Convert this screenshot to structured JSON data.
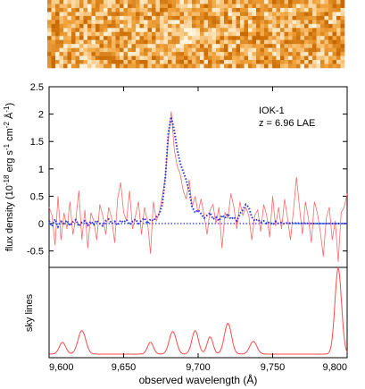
{
  "chart_data": [
    {
      "panel": "spectrum-2d",
      "type": "heatmap",
      "colors": {
        "low": "#c86800",
        "mid": "#f2a640",
        "high": "#fff4dc"
      }
    },
    {
      "panel": "spectrum",
      "type": "line",
      "annotation": {
        "object": "IOK-1",
        "redshift": "z = 6.96 LAE"
      },
      "ylabel": "flux density (10^-18 erg s^-1 cm^-2 Å^-1)",
      "xlim": [
        9600,
        9800
      ],
      "ylim": [
        -0.8,
        2.5
      ],
      "yticks": [
        -0.5,
        0,
        0.5,
        1,
        1.5,
        2,
        2.5
      ],
      "ytick_labels": [
        "-0.5",
        "0",
        "0.5",
        "1",
        "1.5",
        "2",
        "2.5"
      ],
      "series": [
        {
          "style": "solid",
          "color": "#ff6a6a",
          "points": [
            [
              9600,
              0.3
            ],
            [
              9602,
              0.15
            ],
            [
              9604,
              -0.4
            ],
            [
              9606,
              0.5
            ],
            [
              9608,
              -0.3
            ],
            [
              9610,
              0.2
            ],
            [
              9612,
              -0.1
            ],
            [
              9614,
              0.4
            ],
            [
              9616,
              -0.2
            ],
            [
              9618,
              0.1
            ],
            [
              9620,
              0.6
            ],
            [
              9622,
              -0.3
            ],
            [
              9624,
              0.25
            ],
            [
              9626,
              -0.45
            ],
            [
              9628,
              0.2
            ],
            [
              9630,
              0.05
            ],
            [
              9632,
              -0.3
            ],
            [
              9634,
              0.35
            ],
            [
              9636,
              0.15
            ],
            [
              9638,
              -0.2
            ],
            [
              9640,
              0.3
            ],
            [
              9642,
              0.1
            ],
            [
              9644,
              -0.35
            ],
            [
              9646,
              0.45
            ],
            [
              9648,
              0.75
            ],
            [
              9650,
              0.2
            ],
            [
              9652,
              0.05
            ],
            [
              9654,
              0.6
            ],
            [
              9656,
              -0.1
            ],
            [
              9658,
              0.15
            ],
            [
              9660,
              0.4
            ],
            [
              9662,
              -0.2
            ],
            [
              9664,
              0.3
            ],
            [
              9666,
              0.05
            ],
            [
              9668,
              -0.55
            ],
            [
              9670,
              0.4
            ],
            [
              9672,
              0.05
            ],
            [
              9674,
              0.2
            ],
            [
              9676,
              0.5
            ],
            [
              9678,
              0.85
            ],
            [
              9680,
              1.55
            ],
            [
              9682,
              2.05
            ],
            [
              9684,
              1.35
            ],
            [
              9686,
              1.05
            ],
            [
              9688,
              0.9
            ],
            [
              9690,
              0.6
            ],
            [
              9692,
              0.45
            ],
            [
              9694,
              0.8
            ],
            [
              9696,
              0.3
            ],
            [
              9698,
              0.5
            ],
            [
              9700,
              0.2
            ],
            [
              9702,
              0.45
            ],
            [
              9704,
              0.15
            ],
            [
              9706,
              -0.2
            ],
            [
              9708,
              0.25
            ],
            [
              9710,
              0.35
            ],
            [
              9712,
              0.0
            ],
            [
              9714,
              0.3
            ],
            [
              9716,
              -0.45
            ],
            [
              9718,
              0.2
            ],
            [
              9720,
              0.1
            ],
            [
              9722,
              0.55
            ],
            [
              9724,
              0.3
            ],
            [
              9726,
              -0.1
            ],
            [
              9728,
              0.4
            ],
            [
              9730,
              0.15
            ],
            [
              9732,
              0.3
            ],
            [
              9734,
              0.15
            ],
            [
              9736,
              -0.3
            ],
            [
              9738,
              0.15
            ],
            [
              9740,
              0.25
            ],
            [
              9742,
              -0.15
            ],
            [
              9744,
              0.35
            ],
            [
              9746,
              0.15
            ],
            [
              9748,
              -0.25
            ],
            [
              9750,
              0.5
            ],
            [
              9752,
              -0.05
            ],
            [
              9754,
              0.3
            ],
            [
              9756,
              -0.1
            ],
            [
              9758,
              0.45
            ],
            [
              9760,
              0.1
            ],
            [
              9762,
              -0.3
            ],
            [
              9764,
              0.25
            ],
            [
              9766,
              0.85
            ],
            [
              9768,
              0.3
            ],
            [
              9770,
              -0.2
            ],
            [
              9772,
              0.4
            ],
            [
              9774,
              0.1
            ],
            [
              9776,
              -0.35
            ],
            [
              9778,
              0.4
            ],
            [
              9780,
              0.2
            ],
            [
              9782,
              -0.15
            ],
            [
              9784,
              -0.6
            ],
            [
              9786,
              0.1
            ],
            [
              9788,
              0.3
            ],
            [
              9790,
              -0.3
            ],
            [
              9792,
              0.05
            ],
            [
              9794,
              -0.7
            ],
            [
              9796,
              0.2
            ],
            [
              9798,
              0.3
            ],
            [
              9800,
              0.55
            ]
          ]
        },
        {
          "style": "dotted",
          "color": "#2233dd",
          "points": [
            [
              9600,
              0.05
            ],
            [
              9602,
              -0.05
            ],
            [
              9604,
              0.08
            ],
            [
              9606,
              -0.06
            ],
            [
              9608,
              0.04
            ],
            [
              9610,
              0.0
            ],
            [
              9612,
              0.06
            ],
            [
              9614,
              -0.04
            ],
            [
              9616,
              0.03
            ],
            [
              9618,
              0.07
            ],
            [
              9620,
              -0.05
            ],
            [
              9622,
              0.02
            ],
            [
              9624,
              0.05
            ],
            [
              9626,
              -0.03
            ],
            [
              9628,
              0.04
            ],
            [
              9630,
              -0.02
            ],
            [
              9632,
              0.06
            ],
            [
              9634,
              0.0
            ],
            [
              9636,
              -0.04
            ],
            [
              9638,
              0.05
            ],
            [
              9640,
              0.08
            ],
            [
              9642,
              0.0
            ],
            [
              9644,
              0.04
            ],
            [
              9646,
              -0.03
            ],
            [
              9648,
              0.06
            ],
            [
              9650,
              0.02
            ],
            [
              9652,
              0.07
            ],
            [
              9654,
              -0.02
            ],
            [
              9656,
              0.04
            ],
            [
              9658,
              0.08
            ],
            [
              9660,
              0.0
            ],
            [
              9662,
              0.06
            ],
            [
              9664,
              0.1
            ],
            [
              9666,
              0.0
            ],
            [
              9668,
              0.08
            ],
            [
              9670,
              0.05
            ],
            [
              9672,
              0.12
            ],
            [
              9674,
              0.18
            ],
            [
              9676,
              0.35
            ],
            [
              9678,
              0.85
            ],
            [
              9680,
              1.65
            ],
            [
              9682,
              1.95
            ],
            [
              9684,
              1.7
            ],
            [
              9686,
              1.35
            ],
            [
              9688,
              1.1
            ],
            [
              9690,
              0.95
            ],
            [
              9692,
              0.8
            ],
            [
              9694,
              0.6
            ],
            [
              9696,
              0.3
            ],
            [
              9698,
              0.2
            ],
            [
              9700,
              0.25
            ],
            [
              9702,
              0.18
            ],
            [
              9704,
              0.1
            ],
            [
              9706,
              0.15
            ],
            [
              9708,
              0.2
            ],
            [
              9710,
              0.08
            ],
            [
              9712,
              0.12
            ],
            [
              9714,
              0.05
            ],
            [
              9716,
              0.15
            ],
            [
              9718,
              0.1
            ],
            [
              9720,
              0.18
            ],
            [
              9722,
              0.08
            ],
            [
              9724,
              0.12
            ],
            [
              9726,
              0.05
            ],
            [
              9728,
              0.18
            ],
            [
              9730,
              0.25
            ],
            [
              9732,
              0.35
            ],
            [
              9734,
              0.3
            ],
            [
              9736,
              0.12
            ],
            [
              9738,
              0.05
            ],
            [
              9740,
              0.08
            ],
            [
              9742,
              0.02
            ],
            [
              9744,
              0.05
            ],
            [
              9746,
              0.0
            ],
            [
              9748,
              0.03
            ],
            [
              9750,
              -0.02
            ],
            [
              9752,
              0.04
            ],
            [
              9754,
              0.0
            ],
            [
              9756,
              0.02
            ],
            [
              9758,
              -0.01
            ],
            [
              9760,
              0.02
            ],
            [
              9762,
              0.0
            ],
            [
              9764,
              0.02
            ],
            [
              9766,
              0.0
            ],
            [
              9768,
              0.01
            ],
            [
              9770,
              0.0
            ],
            [
              9772,
              0.01
            ],
            [
              9774,
              0.0
            ],
            [
              9776,
              0.0
            ],
            [
              9778,
              0.0
            ],
            [
              9780,
              0.0
            ],
            [
              9782,
              0.0
            ],
            [
              9784,
              0.0
            ],
            [
              9786,
              0.0
            ],
            [
              9788,
              0.0
            ],
            [
              9790,
              0.0
            ],
            [
              9792,
              0.0
            ],
            [
              9794,
              0.0
            ],
            [
              9796,
              0.0
            ],
            [
              9798,
              0.0
            ],
            [
              9800,
              0.0
            ]
          ]
        }
      ],
      "zero_line": {
        "value": 0,
        "style": "dotted",
        "color": "#2233dd"
      }
    },
    {
      "panel": "sky",
      "type": "line",
      "ylabel": "sky lines",
      "xlabel": "observed wavelength (Å)",
      "xlim": [
        9600,
        9800
      ],
      "xticks": [
        9600,
        9650,
        9700,
        9750,
        9800
      ],
      "xtick_labels": [
        "9,600",
        "9,650",
        "9,700",
        "9,750",
        "9,800"
      ],
      "ylim": [
        0,
        1
      ],
      "series": [
        {
          "color": "#ff4a4a",
          "baseline": 0.04,
          "lines": [
            [
              9609,
              0.13,
              2.2
            ],
            [
              9622,
              0.26,
              2.6
            ],
            [
              9668,
              0.13,
              2.0
            ],
            [
              9683,
              0.25,
              2.4
            ],
            [
              9698,
              0.26,
              2.2
            ],
            [
              9708,
              0.19,
              2.0
            ],
            [
              9720,
              0.34,
              2.4
            ],
            [
              9737,
              0.14,
              2.4
            ],
            [
              9794,
              0.95,
              2.2
            ]
          ]
        }
      ]
    }
  ]
}
